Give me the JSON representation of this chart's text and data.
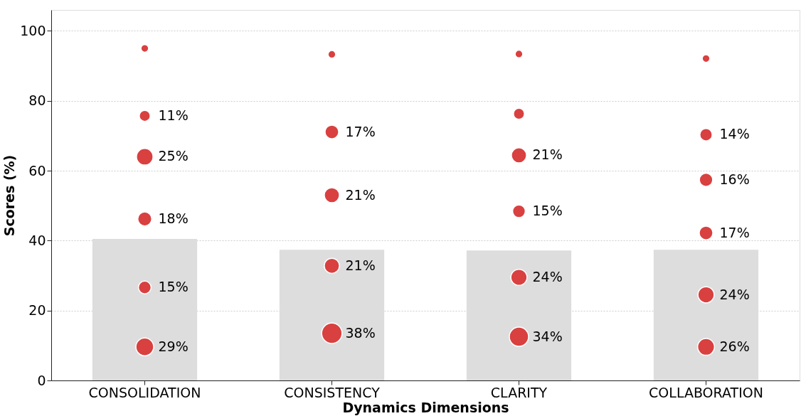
{
  "chart_data": {
    "type": "bar",
    "xlabel": "Dynamics Dimensions",
    "ylabel": "Scores (%)",
    "categories": [
      "CONSOLIDATION",
      "CONSISTENCY",
      "CLARITY",
      "COLLABORATION"
    ],
    "series": [
      {
        "color": "#dddddd",
        "values": [
          40.5,
          37.4,
          37.2,
          37.4
        ]
      },
      {
        "type": "scatter",
        "color": "#d94040",
        "x": [
          "CONSOLIDATION",
          "CONSOLIDATION",
          "CONSOLIDATION",
          "CONSOLIDATION",
          "CONSOLIDATION",
          "CONSOLIDATION",
          "CONSISTENCY",
          "CONSISTENCY",
          "CONSISTENCY",
          "CONSISTENCY",
          "CONSISTENCY",
          "CLARITY",
          "CLARITY",
          "CLARITY",
          "CLARITY",
          "CLARITY",
          "CLARITY",
          "COLLABORATION",
          "COLLABORATION",
          "COLLABORATION",
          "COLLABORATION",
          "COLLABORATION",
          "COLLABORATION"
        ],
        "values": [
          95.0,
          75.7,
          64.0,
          46.2,
          26.6,
          9.6,
          93.3,
          71.1,
          53.0,
          32.8,
          13.5,
          93.4,
          76.3,
          64.4,
          48.4,
          29.5,
          12.5,
          92.1,
          70.3,
          57.4,
          42.2,
          24.5,
          9.6
        ],
        "sizes": [
          0.14,
          0.29,
          0.66,
          0.47,
          0.39,
          0.76,
          0.14,
          0.45,
          0.55,
          0.55,
          1.0,
          0.14,
          0.29,
          0.55,
          0.39,
          0.63,
          0.89,
          0.14,
          0.37,
          0.42,
          0.45,
          0.63,
          0.68
        ]
      }
    ],
    "annotations": [
      {
        "text": "11%",
        "x": "CONSOLIDATION",
        "y": 75.7
      },
      {
        "text": "25%",
        "x": "CONSOLIDATION",
        "y": 64.0
      },
      {
        "text": "18%",
        "x": "CONSOLIDATION",
        "y": 46.2
      },
      {
        "text": "15%",
        "x": "CONSOLIDATION",
        "y": 26.6
      },
      {
        "text": "29%",
        "x": "CONSOLIDATION",
        "y": 9.6
      },
      {
        "text": "17%",
        "x": "CONSISTENCY",
        "y": 71.1
      },
      {
        "text": "21%",
        "x": "CONSISTENCY",
        "y": 53.0
      },
      {
        "text": "21%",
        "x": "CONSISTENCY",
        "y": 32.8
      },
      {
        "text": "38%",
        "x": "CONSISTENCY",
        "y": 13.5
      },
      {
        "text": "21%",
        "x": "CLARITY",
        "y": 64.4
      },
      {
        "text": "15%",
        "x": "CLARITY",
        "y": 48.4
      },
      {
        "text": "24%",
        "x": "CLARITY",
        "y": 29.5
      },
      {
        "text": "34%",
        "x": "CLARITY",
        "y": 12.5
      },
      {
        "text": "14%",
        "x": "COLLABORATION",
        "y": 70.3
      },
      {
        "text": "16%",
        "x": "COLLABORATION",
        "y": 57.4
      },
      {
        "text": "17%",
        "x": "COLLABORATION",
        "y": 42.2
      },
      {
        "text": "24%",
        "x": "COLLABORATION",
        "y": 24.5
      },
      {
        "text": "26%",
        "x": "COLLABORATION",
        "y": 9.6
      }
    ],
    "ylim": [
      0,
      106
    ],
    "yticks": [
      0,
      20,
      40,
      60,
      80,
      100
    ],
    "grid": "y",
    "marker": "circle"
  }
}
